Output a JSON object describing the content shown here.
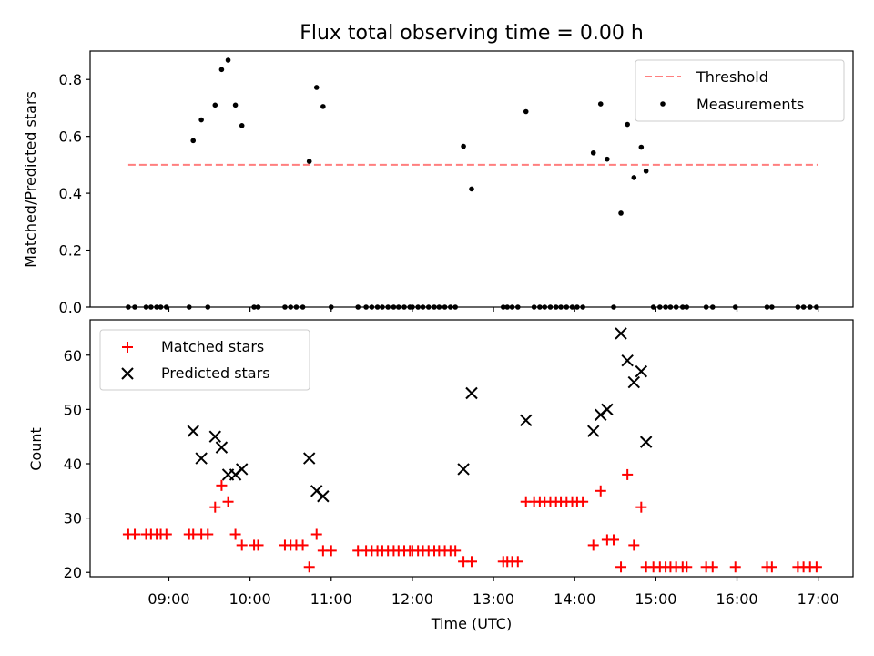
{
  "chart_data": [
    {
      "type": "scatter",
      "title": "Flux total observing time = 0.00 h",
      "xlabel": "",
      "ylabel": "Matched/Predicted stars",
      "xlim_hours": [
        8.03,
        17.43
      ],
      "ylim": [
        0,
        0.9
      ],
      "yticks": [
        0.0,
        0.2,
        0.4,
        0.6,
        0.8
      ],
      "ytick_labels": [
        "0.0",
        "0.2",
        "0.4",
        "0.6",
        "0.8"
      ],
      "threshold": {
        "name": "Threshold",
        "value": 0.5,
        "x_range_hours": [
          8.5,
          17.0
        ],
        "color": "#ff7f7f"
      },
      "series": [
        {
          "name": "Measurements",
          "color": "#000000",
          "x_hours": [
            8.5,
            8.58,
            8.72,
            8.78,
            8.85,
            8.9,
            8.97,
            9.25,
            9.3,
            9.4,
            9.48,
            9.57,
            9.65,
            9.73,
            9.82,
            9.9,
            10.05,
            10.1,
            10.43,
            10.5,
            10.57,
            10.65,
            10.73,
            10.82,
            10.9,
            11.0,
            11.33,
            11.43,
            11.5,
            11.57,
            11.63,
            11.7,
            11.77,
            11.83,
            11.9,
            11.97,
            12.0,
            12.07,
            12.13,
            12.2,
            12.27,
            12.33,
            12.4,
            12.47,
            12.53,
            12.63,
            12.73,
            13.12,
            13.17,
            13.23,
            13.3,
            13.4,
            13.5,
            13.57,
            13.63,
            13.7,
            13.77,
            13.83,
            13.9,
            13.97,
            14.03,
            14.1,
            14.23,
            14.32,
            14.4,
            14.48,
            14.57,
            14.65,
            14.73,
            14.82,
            14.88,
            14.97,
            15.05,
            15.12,
            15.18,
            15.25,
            15.33,
            15.38,
            15.62,
            15.7,
            15.98,
            16.37,
            16.43,
            16.75,
            16.82,
            16.9,
            16.98
          ],
          "y": [
            0,
            0,
            0,
            0,
            0,
            0,
            0,
            0,
            0.585,
            0.658,
            0,
            0.71,
            0.835,
            0.868,
            0.71,
            0.638,
            0,
            0,
            0,
            0,
            0,
            0,
            0.512,
            0.772,
            0.705,
            0,
            0,
            0,
            0,
            0,
            0,
            0,
            0,
            0,
            0,
            0,
            0,
            0,
            0,
            0,
            0,
            0,
            0,
            0,
            0,
            0.565,
            0.415,
            0,
            0,
            0,
            0,
            0.687,
            0,
            0,
            0,
            0,
            0,
            0,
            0,
            0,
            0,
            0,
            0.542,
            0.714,
            0.52,
            0,
            0.33,
            0.642,
            0.455,
            0.562,
            0.478,
            0,
            0,
            0,
            0,
            0,
            0,
            0,
            0,
            0,
            0,
            0,
            0,
            0,
            0,
            0,
            0
          ]
        }
      ],
      "legend": [
        "Threshold",
        "Measurements"
      ],
      "legend_position": "top-right"
    },
    {
      "type": "scatter",
      "xlabel": "Time (UTC)",
      "ylabel": "Count",
      "xlim_hours": [
        8.03,
        17.43
      ],
      "ylim": [
        19.2,
        66.5
      ],
      "yticks": [
        20,
        30,
        40,
        50,
        60
      ],
      "ytick_labels": [
        "20",
        "30",
        "40",
        "50",
        "60"
      ],
      "xticks_hours": [
        9,
        10,
        11,
        12,
        13,
        14,
        15,
        16,
        17
      ],
      "xtick_labels": [
        "09:00",
        "10:00",
        "11:00",
        "12:00",
        "13:00",
        "14:00",
        "15:00",
        "16:00",
        "17:00"
      ],
      "series": [
        {
          "name": "Matched stars",
          "color": "#ff0000",
          "marker": "plus",
          "x_hours": [
            8.5,
            8.58,
            8.72,
            8.78,
            8.85,
            8.9,
            8.97,
            9.25,
            9.3,
            9.4,
            9.48,
            9.57,
            9.65,
            9.73,
            9.82,
            9.9,
            10.05,
            10.1,
            10.43,
            10.5,
            10.57,
            10.65,
            10.73,
            10.82,
            10.9,
            11.0,
            11.33,
            11.43,
            11.5,
            11.57,
            11.63,
            11.7,
            11.77,
            11.83,
            11.9,
            11.97,
            12.0,
            12.07,
            12.13,
            12.2,
            12.27,
            12.33,
            12.4,
            12.47,
            12.53,
            12.63,
            12.73,
            13.12,
            13.17,
            13.23,
            13.3,
            13.4,
            13.5,
            13.57,
            13.63,
            13.7,
            13.77,
            13.83,
            13.9,
            13.97,
            14.03,
            14.1,
            14.23,
            14.32,
            14.4,
            14.48,
            14.57,
            14.65,
            14.73,
            14.82,
            14.88,
            14.97,
            15.05,
            15.12,
            15.18,
            15.25,
            15.33,
            15.38,
            15.62,
            15.7,
            15.98,
            16.37,
            16.43,
            16.75,
            16.82,
            16.9,
            16.98
          ],
          "y": [
            27,
            27,
            27,
            27,
            27,
            27,
            27,
            27,
            27,
            27,
            27,
            32,
            36,
            33,
            27,
            25,
            25,
            25,
            25,
            25,
            25,
            25,
            21,
            27,
            24,
            24,
            24,
            24,
            24,
            24,
            24,
            24,
            24,
            24,
            24,
            24,
            24,
            24,
            24,
            24,
            24,
            24,
            24,
            24,
            24,
            22,
            22,
            22,
            22,
            22,
            22,
            33,
            33,
            33,
            33,
            33,
            33,
            33,
            33,
            33,
            33,
            33,
            25,
            35,
            26,
            26,
            21,
            38,
            25,
            32,
            21,
            21,
            21,
            21,
            21,
            21,
            21,
            21,
            21,
            21,
            21,
            21,
            21,
            21,
            21,
            21,
            21
          ]
        },
        {
          "name": "Predicted stars",
          "color": "#000000",
          "marker": "x",
          "x_hours": [
            9.3,
            9.4,
            9.57,
            9.65,
            9.73,
            9.82,
            9.9,
            10.73,
            10.82,
            10.9,
            12.63,
            12.73,
            13.4,
            14.23,
            14.32,
            14.4,
            14.57,
            14.65,
            14.73,
            14.82,
            14.88
          ],
          "y": [
            46,
            41,
            45,
            43,
            38,
            38,
            39,
            41,
            35,
            34,
            39,
            53,
            48,
            46,
            49,
            50,
            64,
            59,
            55,
            57,
            44
          ]
        }
      ],
      "legend": [
        "Matched stars",
        "Predicted stars"
      ],
      "legend_position": "top-left"
    }
  ]
}
